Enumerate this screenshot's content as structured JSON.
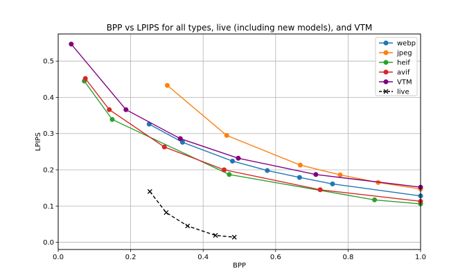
{
  "chart_data": {
    "type": "line",
    "title": "BPP vs LPIPS for all types, live (including new models), and VTM",
    "xlabel": "BPP",
    "ylabel": "LPIPS",
    "xlim": [
      0.0,
      1.0
    ],
    "ylim": [
      -0.02,
      0.575
    ],
    "xticks": [
      0.0,
      0.2,
      0.4,
      0.6,
      0.8,
      1.0
    ],
    "xtick_labels": [
      "0.0",
      "0.2",
      "0.4",
      "0.6",
      "0.8",
      "1.0"
    ],
    "yticks": [
      0.0,
      0.1,
      0.2,
      0.3,
      0.4,
      0.5
    ],
    "ytick_labels": [
      "0.0",
      "0.1",
      "0.2",
      "0.3",
      "0.4",
      "0.5"
    ],
    "grid": true,
    "legend_position": "top-right",
    "series": [
      {
        "name": "webp",
        "color": "#1f77b4",
        "marker": "circle",
        "linestyle": "solid",
        "x": [
          0.251,
          0.343,
          0.481,
          0.577,
          0.666,
          0.757,
          1.0
        ],
        "y": [
          0.326,
          0.276,
          0.224,
          0.198,
          0.179,
          0.161,
          0.128
        ]
      },
      {
        "name": "jpeg",
        "color": "#ff7f0e",
        "marker": "circle",
        "linestyle": "solid",
        "x": [
          0.301,
          0.465,
          0.668,
          0.778,
          0.883,
          1.0
        ],
        "y": [
          0.433,
          0.295,
          0.213,
          0.186,
          0.165,
          0.147
        ]
      },
      {
        "name": "heif",
        "color": "#2ca02c",
        "marker": "circle",
        "linestyle": "solid",
        "x": [
          0.072,
          0.149,
          0.472,
          0.873,
          1.0
        ],
        "y": [
          0.445,
          0.339,
          0.187,
          0.117,
          0.106
        ]
      },
      {
        "name": "avif",
        "color": "#d62728",
        "marker": "circle",
        "linestyle": "solid",
        "x": [
          0.075,
          0.141,
          0.293,
          0.458,
          0.723,
          1.0
        ],
        "y": [
          0.452,
          0.366,
          0.263,
          0.2,
          0.145,
          0.113
        ]
      },
      {
        "name": "VTM",
        "color": "#800080",
        "marker": "circle",
        "linestyle": "solid",
        "x": [
          0.036,
          0.187,
          0.337,
          0.497,
          0.711,
          1.0
        ],
        "y": [
          0.547,
          0.366,
          0.286,
          0.232,
          0.187,
          0.152
        ]
      },
      {
        "name": "live",
        "color": "#000000",
        "marker": "x",
        "linestyle": "dashed",
        "x": [
          0.253,
          0.298,
          0.357,
          0.434,
          0.486
        ],
        "y": [
          0.14,
          0.082,
          0.045,
          0.019,
          0.014
        ]
      }
    ]
  }
}
